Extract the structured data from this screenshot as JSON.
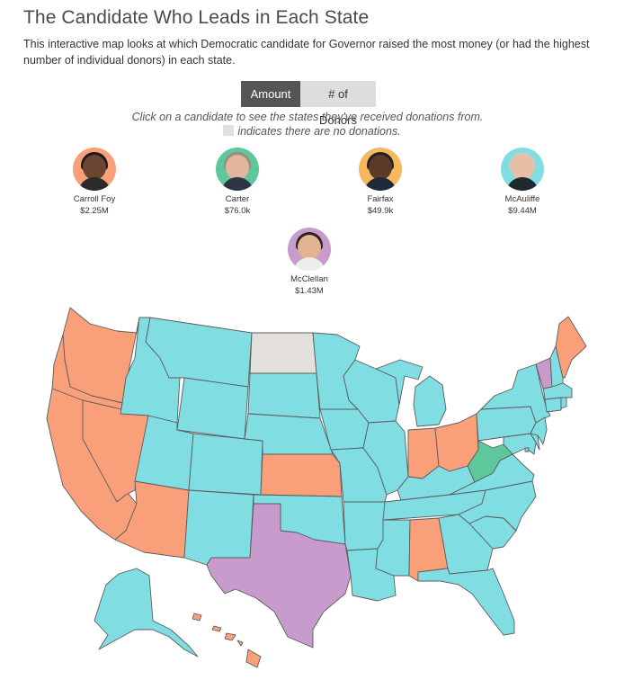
{
  "title": "The Candidate Who Leads in Each State",
  "subtitle": "This interactive map looks at which Democratic candidate for Governor raised the most money (or had the highest number of individual donors) in each state.",
  "toggle": {
    "amount": "Amount",
    "donors": "# of Donors",
    "active": "Amount"
  },
  "instructions": {
    "line1": "Click on a candidate to see the states they've received donations from.",
    "line2": "indicates there are no donations."
  },
  "colors": {
    "carroll_foy": "#f9a07b",
    "carter": "#5ec79b",
    "fairfax": "#f6b85e",
    "mcauliffe": "#80dde2",
    "mcclellan": "#c79bcc",
    "no_donations": "#e3dfda"
  },
  "candidates": [
    {
      "key": "carroll_foy",
      "name": "Carroll Foy",
      "amount": "$2.25M",
      "ring": "#f9a07b"
    },
    {
      "key": "carter",
      "name": "Carter",
      "amount": "$76.0k",
      "ring": "#5ec79b"
    },
    {
      "key": "fairfax",
      "name": "Fairfax",
      "amount": "$49.9k",
      "ring": "#f6b85e"
    },
    {
      "key": "mcauliffe",
      "name": "McAuliffe",
      "amount": "$9.44M",
      "ring": "#80dde2"
    },
    {
      "key": "mcclellan",
      "name": "McClellan",
      "amount": "$1.43M",
      "ring": "#c79bcc"
    }
  ],
  "map": {
    "leaders": {
      "carroll_foy": [
        "WA",
        "OR",
        "CA",
        "NV",
        "AZ",
        "KS",
        "IN",
        "OH",
        "AL",
        "ME",
        "HI"
      ],
      "carter": [
        "WV"
      ],
      "mcclellan": [
        "TX",
        "VT"
      ],
      "no_donations": [
        "ND"
      ],
      "mcauliffe": [
        "ID",
        "MT",
        "WY",
        "UT",
        "CO",
        "NM",
        "SD",
        "NE",
        "OK",
        "MN",
        "IA",
        "MO",
        "AR",
        "LA",
        "WI",
        "IL",
        "MI",
        "KY",
        "TN",
        "MS",
        "GA",
        "FL",
        "SC",
        "NC",
        "VA",
        "PA",
        "NY",
        "NH",
        "MA",
        "CT",
        "RI",
        "NJ",
        "DE",
        "MD",
        "DC",
        "AK"
      ]
    }
  }
}
